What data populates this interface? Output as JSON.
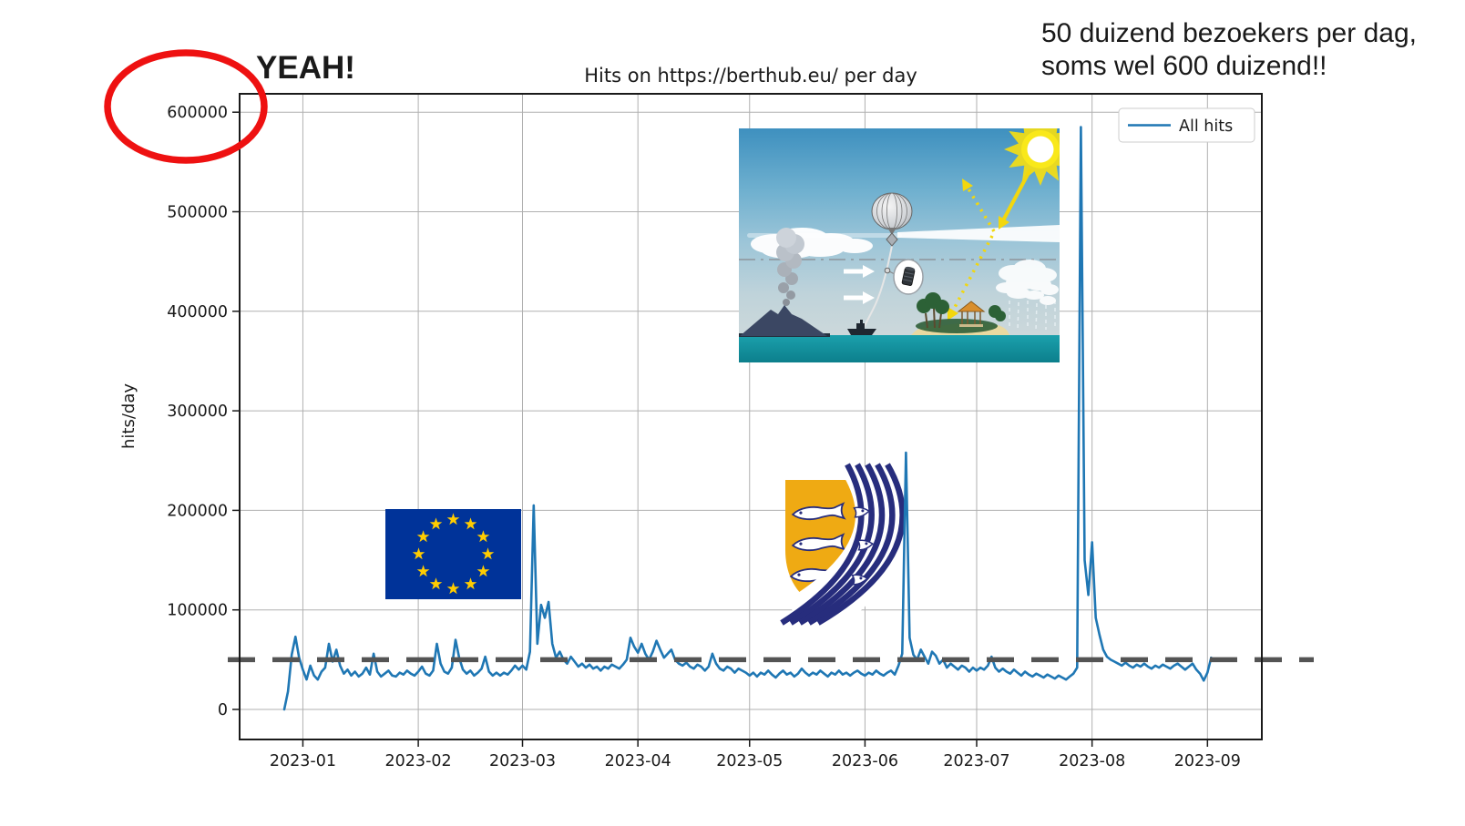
{
  "page": {
    "background": "#ffffff"
  },
  "annotations": {
    "yeah_text": "YEAH!",
    "note_line1": "50 duizend bezoekers per dag,",
    "note_line2": "soms wel 600 duizend!!",
    "red_color": "#ee1111",
    "circled_value": "600000"
  },
  "chart_data": {
    "type": "line",
    "title": "Hits on https://berthub.eu/ per day",
    "xlabel": "",
    "ylabel": "hits/day",
    "grid": true,
    "legend": {
      "position": "upper right",
      "entries": [
        "All hits"
      ]
    },
    "series_color": "#1f77b4",
    "ylim": [
      0,
      618000
    ],
    "y_ticks": [
      0,
      100000,
      200000,
      300000,
      400000,
      500000,
      600000
    ],
    "x_ticks": [
      {
        "label": "2023-01",
        "day": 5
      },
      {
        "label": "2023-02",
        "day": 36
      },
      {
        "label": "2023-03",
        "day": 64
      },
      {
        "label": "2023-04",
        "day": 95
      },
      {
        "label": "2023-05",
        "day": 125
      },
      {
        "label": "2023-06",
        "day": 156
      },
      {
        "label": "2023-07",
        "day": 186
      },
      {
        "label": "2023-08",
        "day": 217
      },
      {
        "label": "2023-09",
        "day": 248
      }
    ],
    "start_date": "2022-12-27",
    "reference_line": {
      "value": 50000,
      "style": "dashed",
      "color": "#545454"
    },
    "series": [
      {
        "name": "All hits"
      }
    ],
    "daily_hits": [
      0,
      18000,
      55000,
      73000,
      52000,
      40000,
      30000,
      44000,
      34000,
      30000,
      38000,
      42000,
      66000,
      48000,
      60000,
      44000,
      36000,
      40000,
      34000,
      38000,
      33000,
      36000,
      42000,
      35000,
      56000,
      38000,
      33000,
      36000,
      39000,
      34000,
      33000,
      37000,
      35000,
      39000,
      36000,
      34000,
      38000,
      43000,
      36000,
      34000,
      39000,
      66000,
      46000,
      38000,
      36000,
      42000,
      70000,
      52000,
      40000,
      36000,
      39000,
      34000,
      37000,
      41000,
      53000,
      38000,
      34000,
      37000,
      34000,
      37000,
      35000,
      39000,
      44000,
      40000,
      44000,
      40000,
      58000,
      205000,
      66000,
      105000,
      92000,
      108000,
      66000,
      52000,
      58000,
      50000,
      46000,
      53000,
      48000,
      43000,
      46000,
      42000,
      45000,
      41000,
      43000,
      39000,
      43000,
      41000,
      45000,
      43000,
      41000,
      45000,
      50000,
      72000,
      63000,
      57000,
      66000,
      56000,
      50000,
      58000,
      69000,
      60000,
      52000,
      56000,
      60000,
      50000,
      46000,
      44000,
      47000,
      43000,
      41000,
      45000,
      43000,
      39000,
      43000,
      56000,
      46000,
      41000,
      39000,
      43000,
      41000,
      37000,
      41000,
      39000,
      37000,
      34000,
      37000,
      33000,
      37000,
      35000,
      39000,
      35000,
      32000,
      36000,
      39000,
      35000,
      37000,
      33000,
      36000,
      41000,
      37000,
      34000,
      37000,
      35000,
      39000,
      36000,
      33000,
      37000,
      35000,
      39000,
      35000,
      37000,
      34000,
      37000,
      39000,
      36000,
      34000,
      37000,
      35000,
      39000,
      36000,
      34000,
      37000,
      39000,
      35000,
      44000,
      56000,
      258000,
      72000,
      55000,
      50000,
      60000,
      53000,
      46000,
      58000,
      54000,
      46000,
      50000,
      42000,
      46000,
      43000,
      40000,
      44000,
      42000,
      38000,
      42000,
      39000,
      42000,
      40000,
      44000,
      53000,
      42000,
      38000,
      41000,
      38000,
      36000,
      40000,
      37000,
      34000,
      38000,
      35000,
      33000,
      36000,
      34000,
      32000,
      35000,
      33000,
      31000,
      34000,
      32000,
      30000,
      33000,
      36000,
      42000,
      585000,
      150000,
      115000,
      168000,
      92000,
      75000,
      60000,
      53000,
      50000,
      48000,
      46000,
      44000,
      47000,
      44000,
      42000,
      45000,
      43000,
      46000,
      43000,
      41000,
      44000,
      42000,
      45000,
      43000,
      41000,
      44000,
      46000,
      43000,
      40000,
      43000,
      46000,
      40000,
      36000,
      29000,
      37000,
      52000
    ]
  },
  "embedded_images": {
    "eu_flag": {
      "field_color": "#003399",
      "star_color": "#ffcc00"
    },
    "coat_of_arms": {
      "gold": "#efaa13",
      "navy": "#272d7d"
    },
    "sai_diagram": {
      "sea": "#15939e",
      "sun": "#f8e612"
    }
  }
}
